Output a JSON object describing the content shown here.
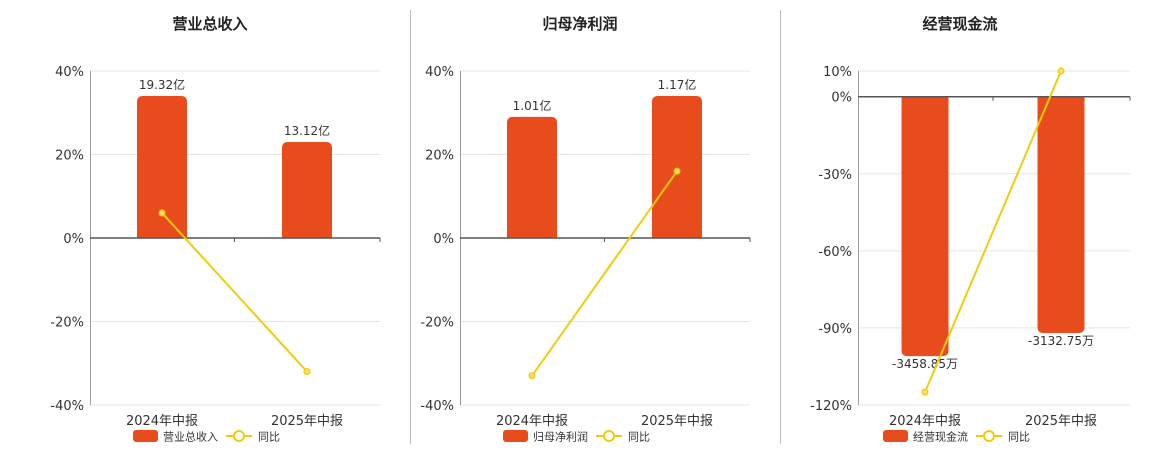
{
  "colors": {
    "bar": "#E84C1C",
    "line": "#F2CC0C",
    "point_fill": "#F9E079",
    "axis": "#555555",
    "grid": "#E5E5E5",
    "divider": "#BBBBBB",
    "text": "#333333"
  },
  "legend": {
    "yoy_label": "同比"
  },
  "chart_data": [
    {
      "type": "bar+line",
      "title": "营业总收入",
      "categories": [
        "2024年中报",
        "2025年中报"
      ],
      "bar_series_name": "营业总收入",
      "bar_values": [
        34,
        23
      ],
      "bar_value_labels": [
        "19.32亿",
        "13.12亿"
      ],
      "line_series_name": "同比",
      "line_values": [
        6,
        -32
      ],
      "ylim": [
        -40,
        40
      ],
      "yticks": [
        40,
        20,
        0,
        -20,
        -40
      ],
      "ytick_labels": [
        "40%",
        "20%",
        "0%",
        "-20%",
        "-40%"
      ],
      "grid": true
    },
    {
      "type": "bar+line",
      "title": "归母净利润",
      "categories": [
        "2024年中报",
        "2025年中报"
      ],
      "bar_series_name": "归母净利润",
      "bar_values": [
        29,
        34
      ],
      "bar_value_labels": [
        "1.01亿",
        "1.17亿"
      ],
      "line_series_name": "同比",
      "line_values": [
        -33,
        16
      ],
      "ylim": [
        -40,
        40
      ],
      "yticks": [
        40,
        20,
        0,
        -20,
        -40
      ],
      "ytick_labels": [
        "40%",
        "20%",
        "0%",
        "-20%",
        "-40%"
      ],
      "grid": true
    },
    {
      "type": "bar+line",
      "title": "经营现金流",
      "categories": [
        "2024年中报",
        "2025年中报"
      ],
      "bar_series_name": "经营现金流",
      "bar_values": [
        -101,
        -92
      ],
      "bar_value_labels": [
        "-3458.85万",
        "-3132.75万"
      ],
      "line_series_name": "同比",
      "line_values": [
        -115,
        10
      ],
      "ylim": [
        -120,
        10
      ],
      "yticks": [
        10,
        0,
        -30,
        -60,
        -90,
        -120
      ],
      "ytick_labels": [
        "10%",
        "0%",
        "-30%",
        "-60%",
        "-90%",
        "-120%"
      ],
      "grid": true
    }
  ]
}
